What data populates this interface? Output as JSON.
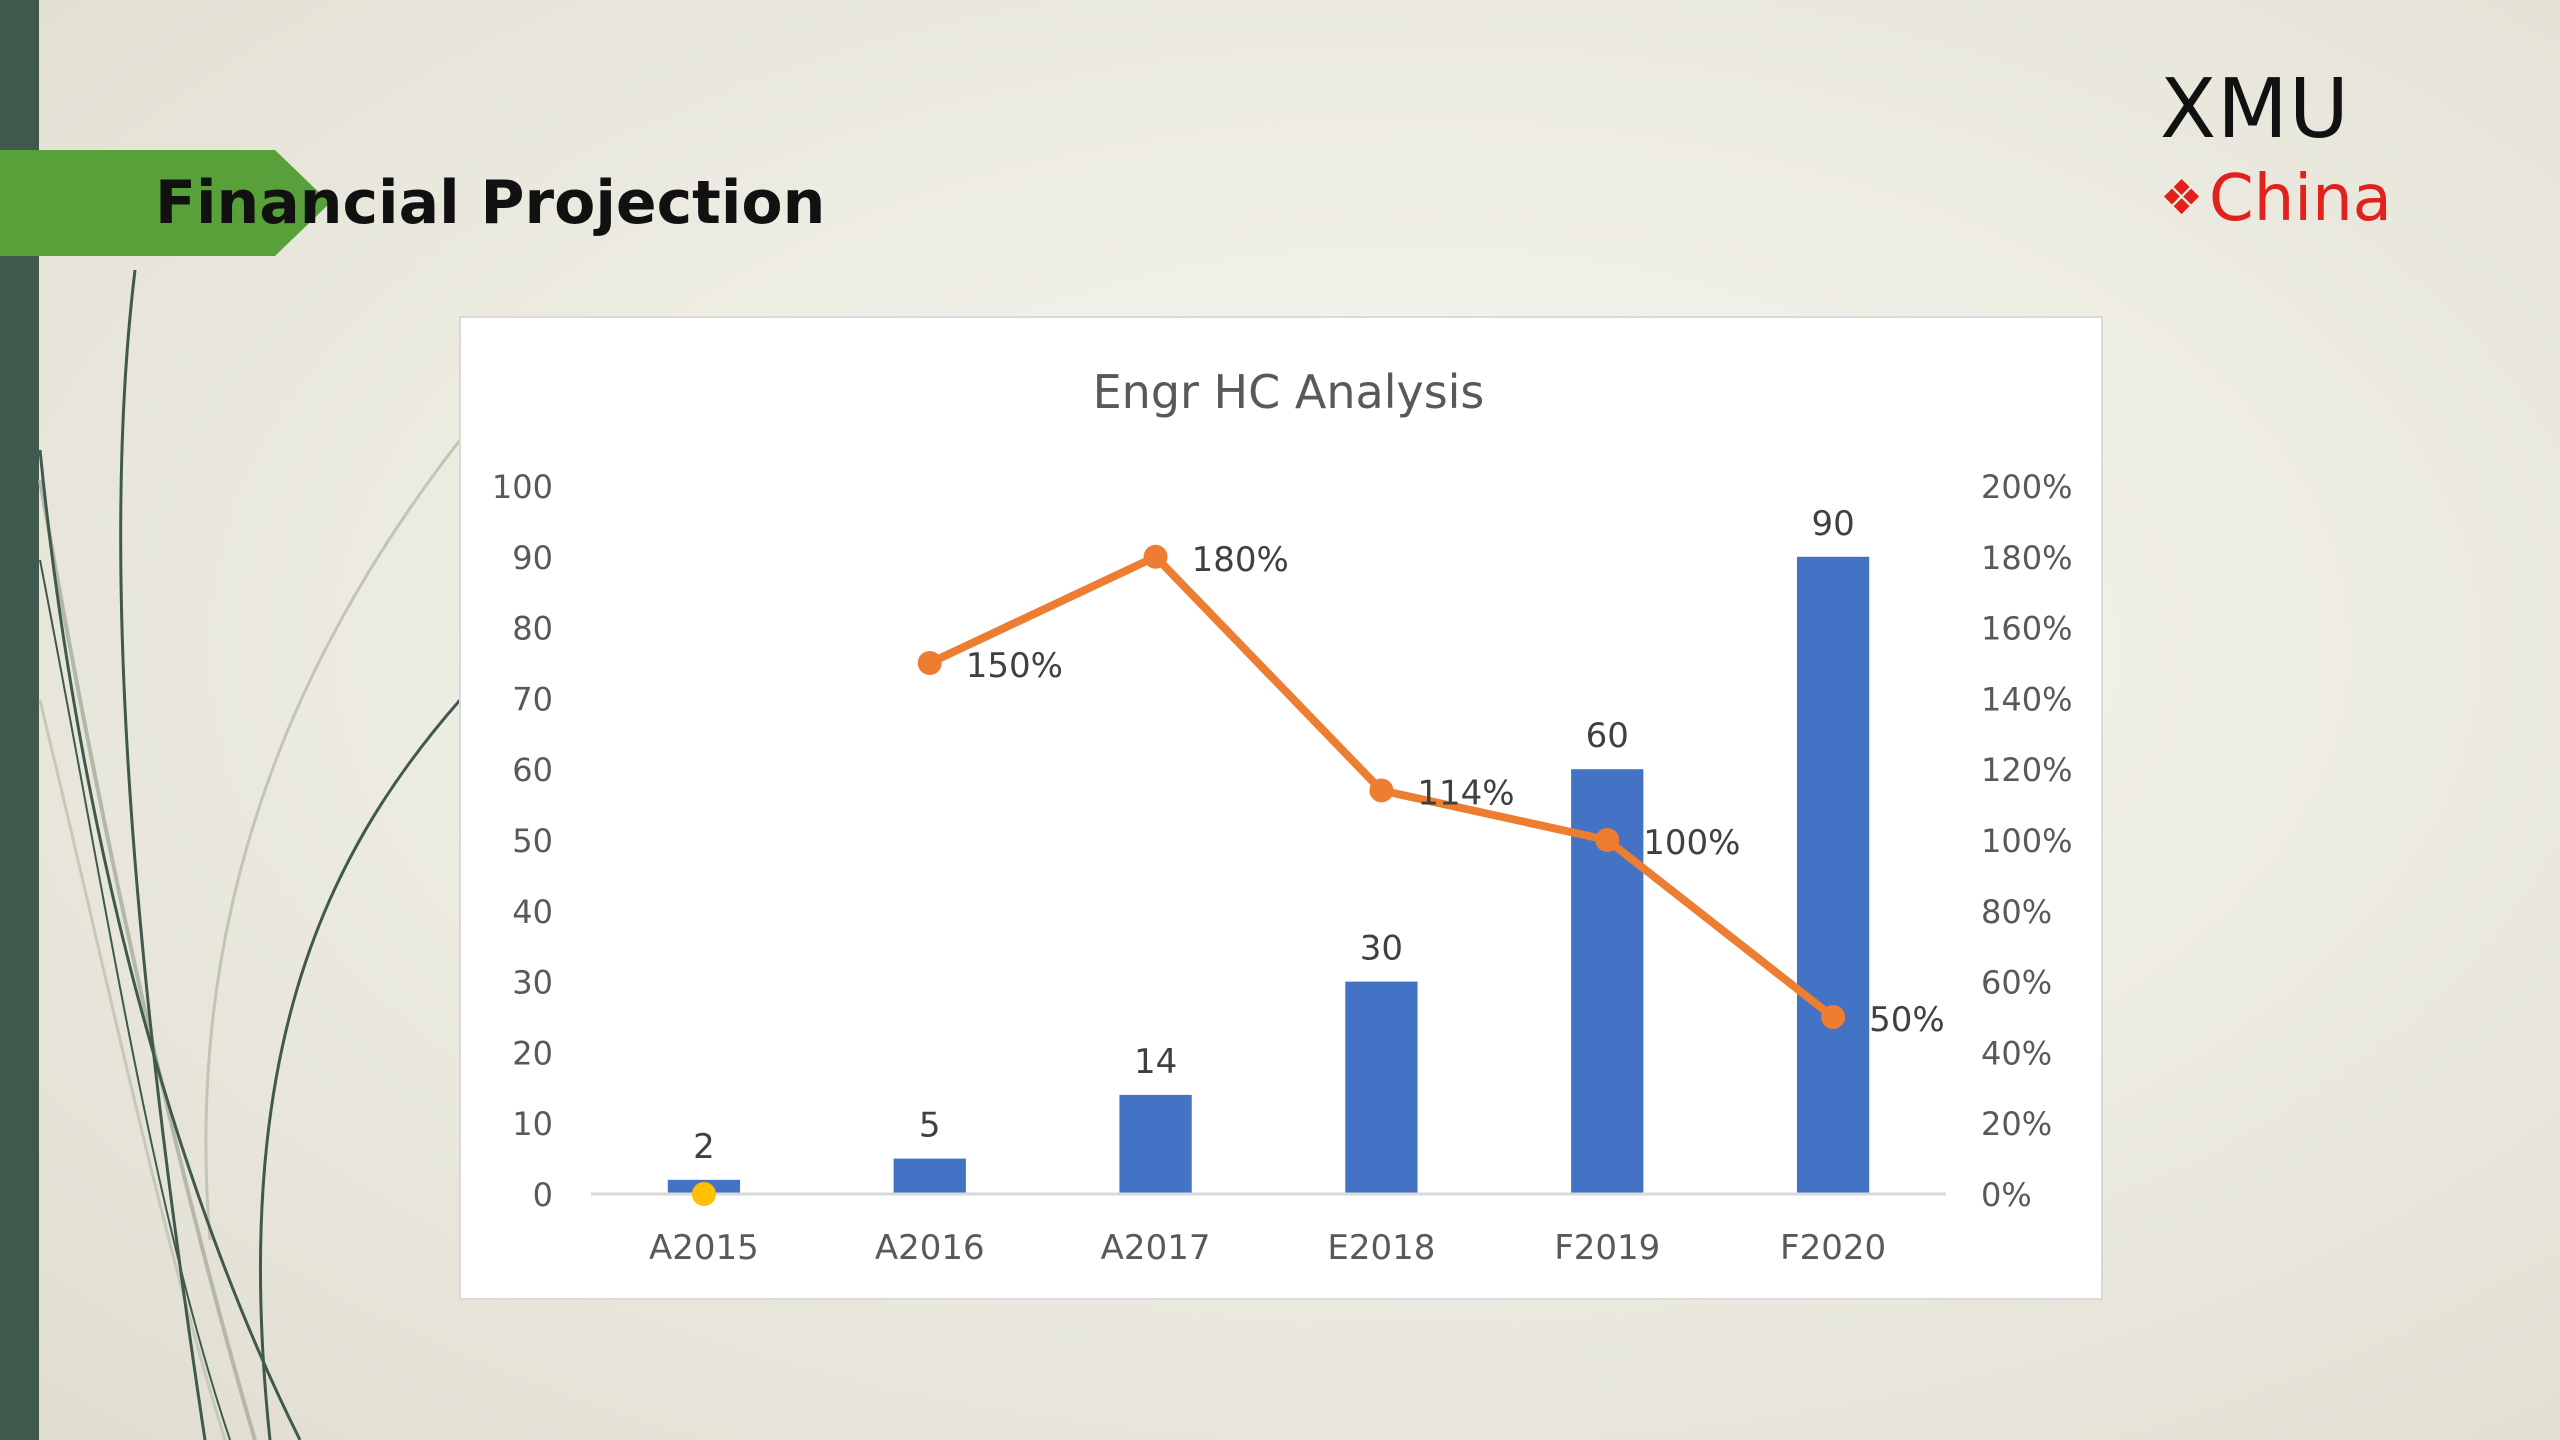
{
  "slide": {
    "title": "Financial Projection"
  },
  "logo": {
    "top_text": "XMU",
    "bottom_text": "China",
    "mark_icon": "four-diamonds-icon",
    "mark_glyph": "❖"
  },
  "colors": {
    "bar": "#4472c4",
    "line": "#ed7d31",
    "title_arrow": "#57a03a",
    "left_bar": "#3f5a4c",
    "logo_red": "#e3211c",
    "axis_text": "#595959",
    "marker_yellow": "#ffc000"
  },
  "chart_data": {
    "type": "bar",
    "title": "Engr HC Analysis",
    "categories": [
      "A2015",
      "A2016",
      "A2017",
      "E2018",
      "F2019",
      "F2020"
    ],
    "series": [
      {
        "type": "bar",
        "axis": "left",
        "values": [
          2,
          5,
          14,
          30,
          60,
          90
        ],
        "data_labels": [
          "2",
          "5",
          "14",
          "30",
          "60",
          "90"
        ]
      },
      {
        "type": "line",
        "axis": "right",
        "values": [
          null,
          1.5,
          1.8,
          1.14,
          1.0,
          0.5
        ],
        "data_labels": [
          "",
          "150%",
          "180%",
          "114%",
          "100%",
          "50%"
        ]
      }
    ],
    "y_left": {
      "ylim": [
        0,
        100
      ],
      "ticks": [
        "0",
        "10",
        "20",
        "30",
        "40",
        "50",
        "60",
        "70",
        "80",
        "90",
        "100"
      ]
    },
    "y_right": {
      "ylim": [
        0,
        2
      ],
      "ticks": [
        "0%",
        "20%",
        "40%",
        "60%",
        "80%",
        "100%",
        "120%",
        "140%",
        "160%",
        "180%",
        "200%"
      ]
    },
    "extra_point": {
      "category": "A2015",
      "value": 0,
      "color": "#ffc000"
    },
    "grid": false,
    "legend": "none"
  }
}
